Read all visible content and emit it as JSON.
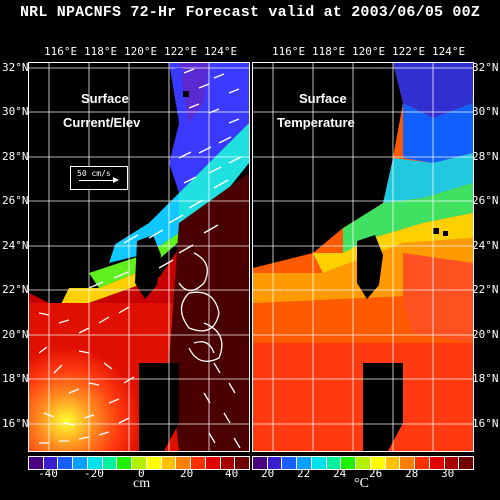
{
  "title": "NRL NPACNFS 72-Hr Forecast valid at 2003/06/05 00Z",
  "lon_labels": [
    "116°E",
    "118°E",
    "120°E",
    "122°E",
    "124°E"
  ],
  "lat_labels_left": [
    "32°N",
    "30°N",
    "28°N",
    "26°N",
    "24°N",
    "22°N",
    "20°N",
    "18°N",
    "16°N"
  ],
  "lat_labels_right": [
    "32°N",
    "30°N",
    "28°N",
    "26°N",
    "24°N",
    "22°N",
    "20°N",
    "18°N",
    "16°N"
  ],
  "left_panel": {
    "label_line1": "Surface",
    "label_line2": "Current/Elev",
    "reference_vector": "50 cm/s",
    "colorbar_ticks": [
      "-40",
      "-20",
      "0",
      "20",
      "40"
    ],
    "colorbar_unit": "cm",
    "colorbar_range": [
      -45,
      45
    ]
  },
  "right_panel": {
    "label_line1": "Surface",
    "label_line2": "Temperature",
    "colorbar_ticks": [
      "20",
      "22",
      "24",
      "26",
      "28",
      "30"
    ],
    "colorbar_unit": "°C",
    "colorbar_range": [
      19,
      31
    ]
  },
  "colors": {
    "land": "#000000",
    "frame": "#ffffff",
    "vectors": "#ffffff",
    "colorbar": [
      "#4b0082",
      "#3a1fd0",
      "#1860ff",
      "#0aa0ff",
      "#00e0e8",
      "#00f0a0",
      "#20f000",
      "#b0f000",
      "#ffff00",
      "#ffc000",
      "#ff8000",
      "#ff3000",
      "#e00000",
      "#a80000",
      "#700000"
    ]
  }
}
